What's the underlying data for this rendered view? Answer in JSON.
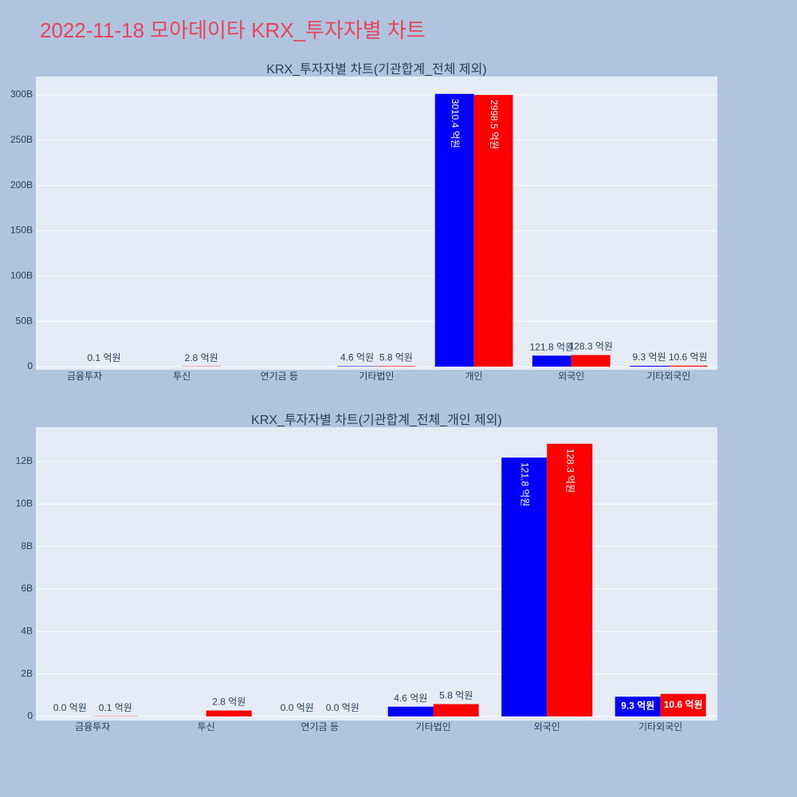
{
  "title": "2022-11-18 모아데이타 KRX_투자자별 차트",
  "chart_data": [
    {
      "type": "bar",
      "title": "KRX_투자자별 차트(기관합계_전체 제외)",
      "categories": [
        "금융투자",
        "투신",
        "연기금 등",
        "기타법인",
        "개인",
        "외국인",
        "기타외국인"
      ],
      "series": [
        {
          "color": "#0000ff",
          "values": [
            0,
            null,
            0,
            460000000,
            301040000000,
            12180000000,
            930000000
          ],
          "value_labels": [
            null,
            null,
            null,
            "4.6 억원",
            "3010.4 억원",
            "121.8 억원",
            "9.3 억원"
          ]
        },
        {
          "color": "#ff0000",
          "values": [
            10000000,
            280000000,
            0,
            580000000,
            299850000000,
            12830000000,
            1060000000
          ],
          "value_labels": [
            "0.1 억원",
            "2.8 억원",
            null,
            "5.8 억원",
            "2998.5 억원",
            "128.3 억원",
            "10.6 억원"
          ]
        }
      ],
      "ylim": [
        -3500000000,
        320200000000
      ],
      "yticks": [
        0,
        {
          "value": 50000000000,
          "label": "50B"
        },
        {
          "value": 100000000000,
          "label": "100B"
        },
        {
          "value": 150000000000,
          "label": "150B"
        },
        {
          "value": 200000000000,
          "label": "200B"
        },
        {
          "value": 250000000000,
          "label": "250B"
        },
        {
          "value": 300000000000,
          "label": "300B"
        }
      ],
      "grid": true
    },
    {
      "type": "bar",
      "title": "KRX_투자자별 차트(기관합계_전체_개인 제외)",
      "categories": [
        "금융투자",
        "투신",
        "연기금 등",
        "기타법인",
        "외국인",
        "기타외국인"
      ],
      "series": [
        {
          "color": "#0000ff",
          "values": [
            0,
            null,
            0,
            460000000,
            12180000000,
            930000000
          ],
          "value_labels": [
            "0.0 억원",
            null,
            "0.0 억원",
            "4.6 억원",
            "121.8 억원",
            "9.3 억원"
          ]
        },
        {
          "color": "#ff0000",
          "values": [
            10000000,
            280000000,
            0,
            580000000,
            12830000000,
            1060000000
          ],
          "value_labels": [
            "0.1 억원",
            "2.8 억원",
            "0.0 억원",
            "5.8 억원",
            "128.3 억원",
            "10.6 억원"
          ]
        }
      ],
      "ylim": [
        -190000000,
        13610000000
      ],
      "yticks": [
        0,
        {
          "value": 2000000000,
          "label": "2B"
        },
        {
          "value": 4000000000,
          "label": "4B"
        },
        {
          "value": 6000000000,
          "label": "6B"
        },
        {
          "value": 8000000000,
          "label": "8B"
        },
        {
          "value": 10000000000,
          "label": "10B"
        },
        {
          "value": 12000000000,
          "label": "12B"
        }
      ],
      "grid": true
    }
  ]
}
